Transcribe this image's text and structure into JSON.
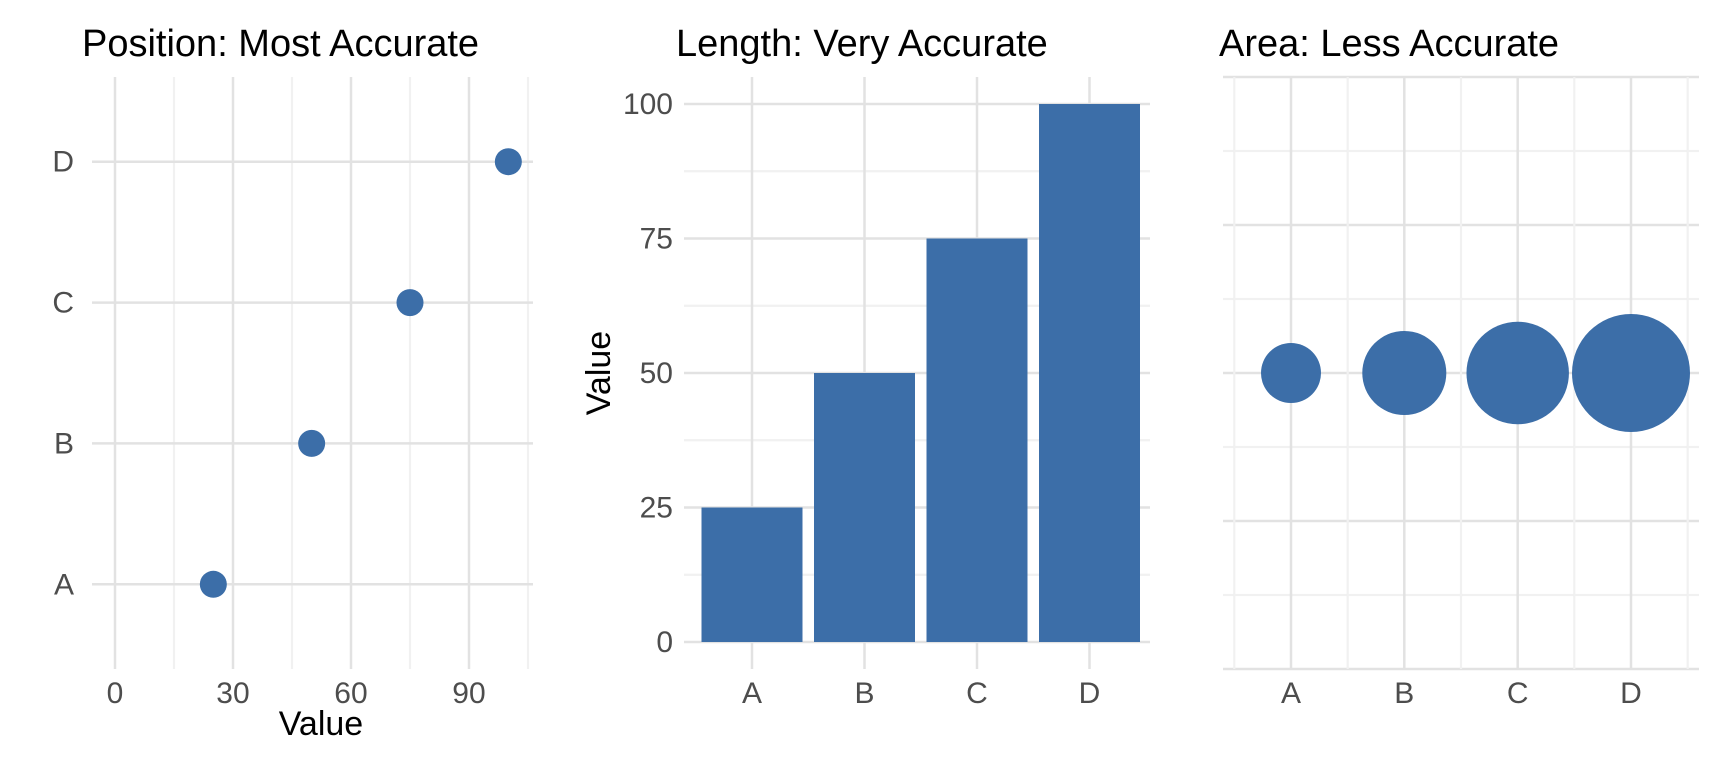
{
  "figure": {
    "background": "#FFFFFF",
    "description_titles": [
      "Position: Most Accurate",
      "Length: Very Accurate",
      "Area: Less Accurate"
    ]
  },
  "palette": {
    "mark_blue": "#3C6EA8",
    "grid_major": "#E2E2E2",
    "grid_minor": "#F1F1F1",
    "axis_text": "#4D4D4D",
    "title_text": "#000000",
    "axis_title_text": "#000000"
  },
  "chart_data": [
    {
      "type": "scatter",
      "orientation": "horizontal",
      "title": "Position: Most Accurate",
      "categories": [
        "A",
        "B",
        "C",
        "D"
      ],
      "values": [
        25,
        50,
        75,
        100
      ],
      "xlabel": "Value",
      "ylabel": "",
      "x_ticks": [
        0,
        30,
        60,
        90
      ],
      "x_minor_ticks": [
        15,
        45,
        75,
        105
      ],
      "xlim": [
        -6,
        111
      ],
      "grid": "on",
      "legend": "none",
      "point_color": "#3C6EA8"
    },
    {
      "type": "bar",
      "title": "Length: Very Accurate",
      "categories": [
        "A",
        "B",
        "C",
        "D"
      ],
      "values": [
        25,
        50,
        75,
        100
      ],
      "xlabel": "",
      "ylabel": "Value",
      "y_ticks": [
        0,
        25,
        50,
        75,
        100
      ],
      "y_minor_ticks": [
        12.5,
        37.5,
        62.5,
        87.5
      ],
      "ylim": [
        -5,
        105
      ],
      "grid": "on",
      "legend": "none",
      "bar_color": "#3C6EA8"
    },
    {
      "type": "bubble",
      "title": "Area: Less Accurate",
      "categories": [
        "A",
        "B",
        "C",
        "D"
      ],
      "values": [
        25,
        50,
        75,
        100
      ],
      "size_encoding": "area-proportional-to-value",
      "y_position": "constant",
      "grid": "on",
      "legend": "none",
      "bubble_color": "#3C6EA8"
    }
  ]
}
